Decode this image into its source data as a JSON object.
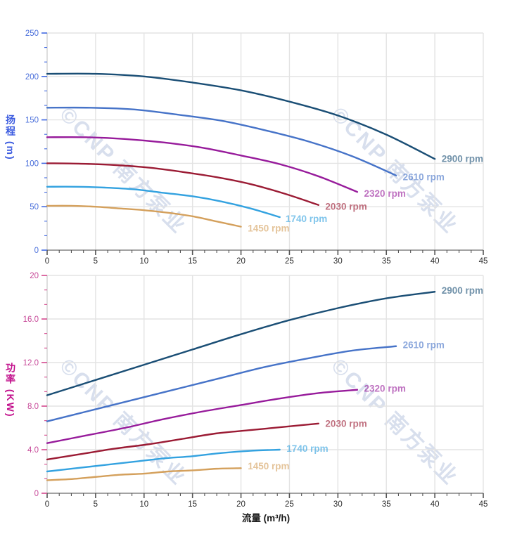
{
  "watermark": {
    "text": "©CNP 南方泵业",
    "color": "#b9c6e0",
    "opacity": 0.55
  },
  "axes": {
    "flow_title": "流量 (m³/h)",
    "flow_title_color": "#1a1a1a",
    "head_title": "扬程 (m)",
    "head_title_color": "#3b5be0",
    "power_title": "功率 (KW)",
    "power_title_color": "#c2108c",
    "grid_color": "#e3e3e3",
    "axis_line_color": "#c9c9c9",
    "x_axis_line_color": "#6b6b6b"
  },
  "chart_data": [
    {
      "type": "line",
      "name": "head-vs-flow",
      "ylabel": "扬程 (m)",
      "xlabel": "",
      "x": {
        "min": 0,
        "max": 45,
        "major_step": 5,
        "minor_step": 1.25,
        "tick_labels": [
          "0",
          "5",
          "10",
          "15",
          "20",
          "25",
          "30",
          "35",
          "40",
          "45"
        ],
        "tick_color": "#555555",
        "text_color": "#2b2b2b"
      },
      "y": {
        "min": 0,
        "max": 250,
        "major_step": 50,
        "minor_step": 16.6667,
        "tick_labels": [
          "0",
          "50",
          "100",
          "150",
          "200",
          "250"
        ],
        "tick_color": "#4169e1",
        "text_color": "#4a6fdb"
      },
      "grid": true,
      "legend_position": "end-of-curve",
      "series": [
        {
          "name": "2900 rpm",
          "color": "#1a4e75",
          "points": [
            [
              0,
              203
            ],
            [
              5,
              203
            ],
            [
              10,
              200
            ],
            [
              15,
              193
            ],
            [
              20,
              184
            ],
            [
              25,
              171
            ],
            [
              30,
              155
            ],
            [
              35,
              133
            ],
            [
              40,
              105
            ]
          ],
          "label": {
            "text": "2900 rpm",
            "x": 40.7,
            "y": 105
          }
        },
        {
          "name": "2610 rpm",
          "color": "#4673c8",
          "points": [
            [
              0,
              164
            ],
            [
              4.5,
              164
            ],
            [
              9,
              162
            ],
            [
              13.5,
              156
            ],
            [
              18,
              149
            ],
            [
              22.5,
              138
            ],
            [
              27,
              125
            ],
            [
              31.5,
              108
            ],
            [
              36,
              86
            ]
          ],
          "label": {
            "text": "2610 rpm",
            "x": 36.7,
            "y": 84
          }
        },
        {
          "name": "2320 rpm",
          "color": "#971b9b",
          "points": [
            [
              0,
              130
            ],
            [
              4,
              130
            ],
            [
              8,
              128
            ],
            [
              12,
              124
            ],
            [
              16,
              118
            ],
            [
              20,
              109
            ],
            [
              24,
              99
            ],
            [
              28,
              85
            ],
            [
              32,
              67
            ]
          ],
          "label": {
            "text": "2320 rpm",
            "x": 32.7,
            "y": 65
          }
        },
        {
          "name": "2030 rpm",
          "color": "#9b1b34",
          "points": [
            [
              0,
              100
            ],
            [
              3.5,
              99.5
            ],
            [
              7,
              98
            ],
            [
              10.5,
              95
            ],
            [
              14,
              90
            ],
            [
              17.5,
              84
            ],
            [
              21,
              76
            ],
            [
              24.5,
              65
            ],
            [
              28,
              52
            ]
          ],
          "label": {
            "text": "2030 rpm",
            "x": 28.7,
            "y": 50
          }
        },
        {
          "name": "1740 rpm",
          "color": "#33a2e0",
          "points": [
            [
              0,
              73
            ],
            [
              3,
              73
            ],
            [
              6,
              72
            ],
            [
              9,
              70
            ],
            [
              12,
              66
            ],
            [
              15,
              62
            ],
            [
              18,
              56
            ],
            [
              21,
              48
            ],
            [
              24,
              38
            ]
          ],
          "label": {
            "text": "1740 rpm",
            "x": 24.6,
            "y": 36
          }
        },
        {
          "name": "1450 rpm",
          "color": "#d4a05c",
          "points": [
            [
              0,
              51
            ],
            [
              2.5,
              51
            ],
            [
              5,
              50
            ],
            [
              7.5,
              48
            ],
            [
              10,
              46
            ],
            [
              12.5,
              43
            ],
            [
              15,
              39
            ],
            [
              17.5,
              33
            ],
            [
              20,
              27
            ]
          ],
          "label": {
            "text": "1450 rpm",
            "x": 20.7,
            "y": 25
          }
        }
      ]
    },
    {
      "type": "line",
      "name": "power-vs-flow",
      "ylabel": "功率 (KW)",
      "xlabel": "流量 (m³/h)",
      "x": {
        "min": 0,
        "max": 45,
        "major_step": 5,
        "minor_step": 1.25,
        "tick_labels": [
          "0",
          "5",
          "10",
          "15",
          "20",
          "25",
          "30",
          "35",
          "40",
          "45"
        ],
        "tick_color": "#555555",
        "text_color": "#2b2b2b"
      },
      "y": {
        "min": 0,
        "max": 20,
        "major_step": 4,
        "minor_step": 1.33333,
        "tick_labels": [
          "0",
          "4.0",
          "8.0",
          "12.0",
          "16.0",
          "20"
        ],
        "tick_color": "#d4488e",
        "text_color": "#c74a99"
      },
      "grid": true,
      "legend_position": "end-of-curve",
      "series": [
        {
          "name": "2900 rpm",
          "color": "#1a4e75",
          "points": [
            [
              0,
              9.0
            ],
            [
              5,
              10.4
            ],
            [
              10,
              11.8
            ],
            [
              15,
              13.2
            ],
            [
              20,
              14.6
            ],
            [
              25,
              15.9
            ],
            [
              30,
              17.0
            ],
            [
              35,
              17.9
            ],
            [
              40,
              18.5
            ]
          ],
          "label": {
            "text": "2900 rpm",
            "x": 40.7,
            "y": 18.6
          }
        },
        {
          "name": "2610 rpm",
          "color": "#4673c8",
          "points": [
            [
              0,
              6.6
            ],
            [
              4.5,
              7.6
            ],
            [
              9,
              8.6
            ],
            [
              13.5,
              9.6
            ],
            [
              18,
              10.6
            ],
            [
              22.5,
              11.6
            ],
            [
              27,
              12.4
            ],
            [
              31.5,
              13.1
            ],
            [
              36,
              13.5
            ]
          ],
          "label": {
            "text": "2610 rpm",
            "x": 36.7,
            "y": 13.6
          }
        },
        {
          "name": "2320 rpm",
          "color": "#971b9b",
          "points": [
            [
              0,
              4.6
            ],
            [
              4,
              5.3
            ],
            [
              8,
              6.0
            ],
            [
              12,
              6.8
            ],
            [
              16,
              7.5
            ],
            [
              20,
              8.1
            ],
            [
              24,
              8.7
            ],
            [
              28,
              9.2
            ],
            [
              32,
              9.5
            ]
          ],
          "label": {
            "text": "2320 rpm",
            "x": 32.7,
            "y": 9.6
          }
        },
        {
          "name": "2030 rpm",
          "color": "#9b1b34",
          "points": [
            [
              0,
              3.1
            ],
            [
              3.5,
              3.6
            ],
            [
              7,
              4.1
            ],
            [
              10.5,
              4.5
            ],
            [
              14,
              5.0
            ],
            [
              17.5,
              5.5
            ],
            [
              21,
              5.8
            ],
            [
              24.5,
              6.1
            ],
            [
              28,
              6.4
            ]
          ],
          "label": {
            "text": "2030 rpm",
            "x": 28.7,
            "y": 6.4
          }
        },
        {
          "name": "1740 rpm",
          "color": "#33a2e0",
          "points": [
            [
              0,
              2.0
            ],
            [
              3,
              2.3
            ],
            [
              6,
              2.6
            ],
            [
              9,
              2.9
            ],
            [
              12,
              3.2
            ],
            [
              15,
              3.4
            ],
            [
              18,
              3.7
            ],
            [
              21,
              3.9
            ],
            [
              24,
              4.0
            ]
          ],
          "label": {
            "text": "1740 rpm",
            "x": 24.7,
            "y": 4.1
          }
        },
        {
          "name": "1450 rpm",
          "color": "#d4a05c",
          "points": [
            [
              0,
              1.2
            ],
            [
              2.5,
              1.3
            ],
            [
              5,
              1.5
            ],
            [
              7.5,
              1.7
            ],
            [
              10,
              1.8
            ],
            [
              12.5,
              2.0
            ],
            [
              15,
              2.1
            ],
            [
              17.5,
              2.25
            ],
            [
              20,
              2.3
            ]
          ],
          "label": {
            "text": "1450 rpm",
            "x": 20.7,
            "y": 2.5
          }
        }
      ]
    }
  ]
}
